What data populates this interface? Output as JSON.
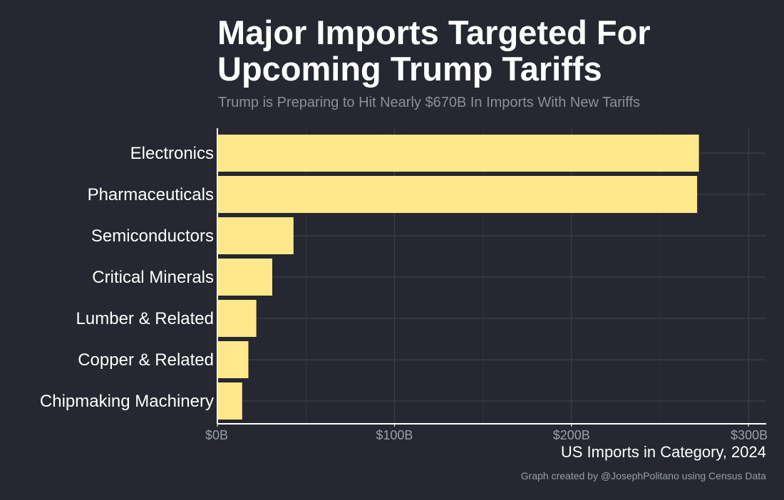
{
  "header": {
    "title": "Major Imports Targeted For Upcoming Trump Tariffs",
    "subtitle": "Trump is Preparing to Hit Nearly $670B In Imports With New Tariffs"
  },
  "caption": "Graph created by @JosephPolitano using Census Data",
  "colors": {
    "background": "#252830",
    "bar": "#fee88a",
    "grid": "#40434b",
    "axis": "#ffffff",
    "tick_label": "#9a9ea6"
  },
  "chart_data": {
    "type": "bar",
    "orientation": "horizontal",
    "title": "Major Imports Targeted For Upcoming Trump Tariffs",
    "subtitle": "Trump is Preparing to Hit Nearly $670B In Imports With New Tariffs",
    "xlabel": "US Imports in Category, 2024",
    "ylabel": "",
    "categories": [
      "Electronics",
      "Pharmaceuticals",
      "Semiconductors",
      "Critical Minerals",
      "Lumber & Related",
      "Copper & Related",
      "Chipmaking Machinery"
    ],
    "values": [
      272,
      271,
      43,
      31,
      22,
      17.5,
      14
    ],
    "unit": "billions of US dollars",
    "xlim": [
      0,
      310
    ],
    "xticks": [
      0,
      100,
      200,
      300
    ],
    "xtick_labels": [
      "$0B",
      "$100B",
      "$200B",
      "$300B"
    ],
    "grid": true,
    "legend": "none"
  }
}
